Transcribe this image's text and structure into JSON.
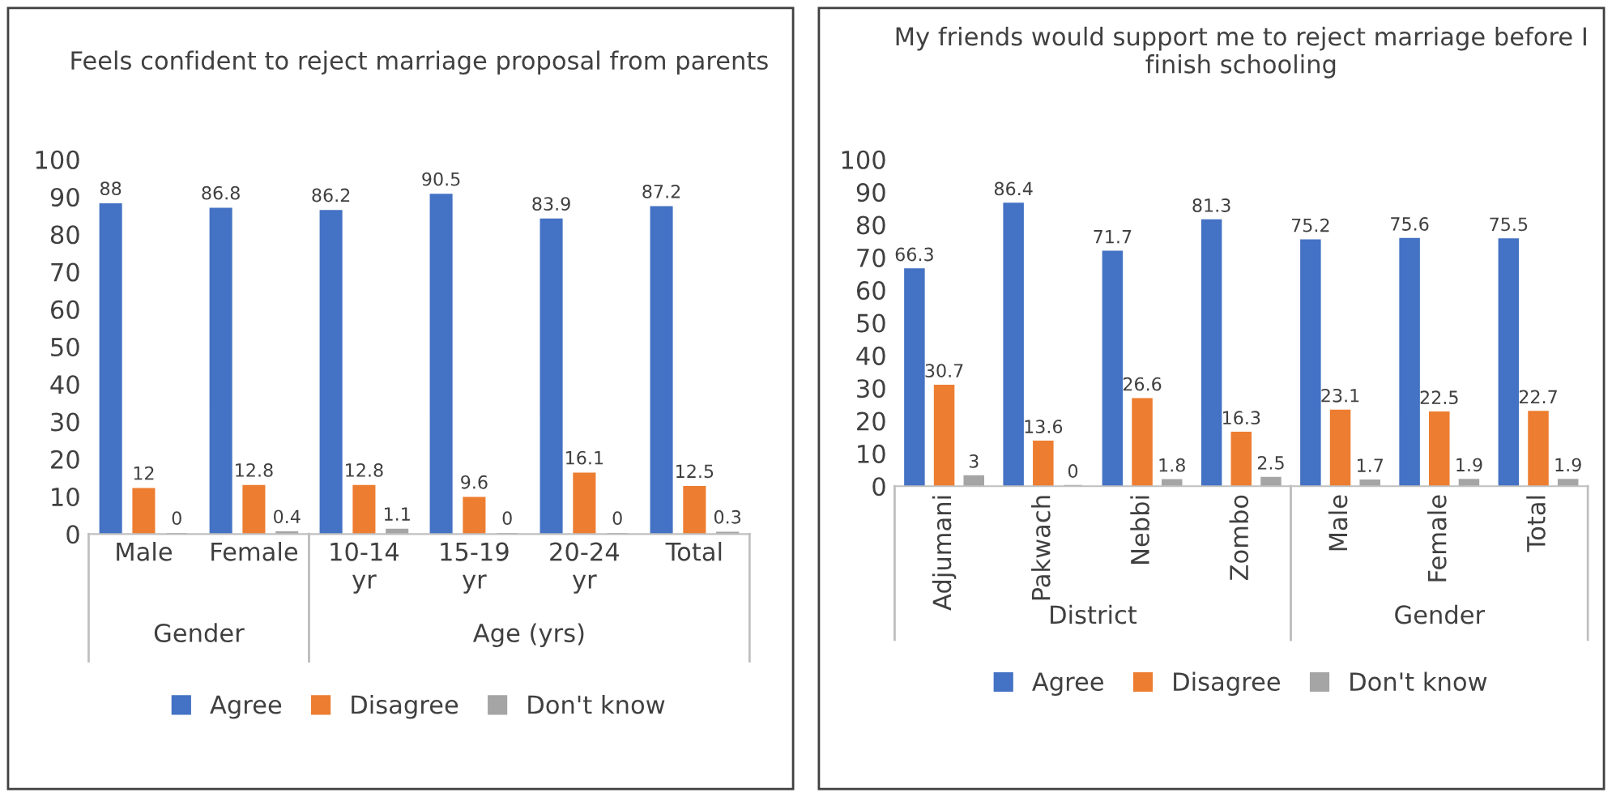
{
  "chart_data": [
    {
      "type": "bar",
      "title": "Feels confident to reject marriage proposal from parents",
      "categories": [
        "Male",
        "Female",
        "10-14\nyr",
        "15-19\nyr",
        "20-24\nyr",
        "Total"
      ],
      "series": [
        {
          "name": "Agree",
          "color": "#4472c4",
          "values": [
            88,
            86.8,
            86.2,
            90.5,
            83.9,
            87.2
          ]
        },
        {
          "name": "Disagree",
          "color": "#ed7d31",
          "values": [
            12,
            12.8,
            12.8,
            9.6,
            16.1,
            12.5
          ]
        },
        {
          "name": "Don't know",
          "color": "#a5a5a5",
          "values": [
            0,
            0.4,
            1.1,
            0,
            0,
            0.3
          ]
        }
      ],
      "ylim": [
        0,
        100
      ],
      "yticks": [
        0,
        10,
        20,
        30,
        40,
        50,
        60,
        70,
        80,
        90,
        100
      ],
      "data_labels": true,
      "legend": "bottom",
      "grid": false,
      "annotations": [
        "Gender",
        "Age (yrs)"
      ]
    },
    {
      "type": "bar",
      "title": "My friends would support me to reject marriage before I finish schooling",
      "categories": [
        "Adjumani",
        "Pakwach",
        "Nebbi",
        "Zombo",
        "Male",
        "Female",
        "Total"
      ],
      "series": [
        {
          "name": "Agree",
          "color": "#4472c4",
          "values": [
            66.3,
            86.4,
            71.7,
            81.3,
            75.2,
            75.6,
            75.5
          ]
        },
        {
          "name": "Disagree",
          "color": "#ed7d31",
          "values": [
            30.7,
            13.6,
            26.6,
            16.3,
            23.1,
            22.5,
            22.7
          ]
        },
        {
          "name": "Don't know",
          "color": "#a5a5a5",
          "values": [
            3,
            0,
            1.8,
            2.5,
            1.7,
            1.9,
            1.9
          ]
        }
      ],
      "ylim": [
        0,
        100
      ],
      "yticks": [
        0,
        10,
        20,
        30,
        40,
        50,
        60,
        70,
        80,
        90,
        100
      ],
      "data_labels": true,
      "legend": "bottom",
      "grid": false,
      "annotations": [
        "District",
        "Gender"
      ]
    }
  ]
}
